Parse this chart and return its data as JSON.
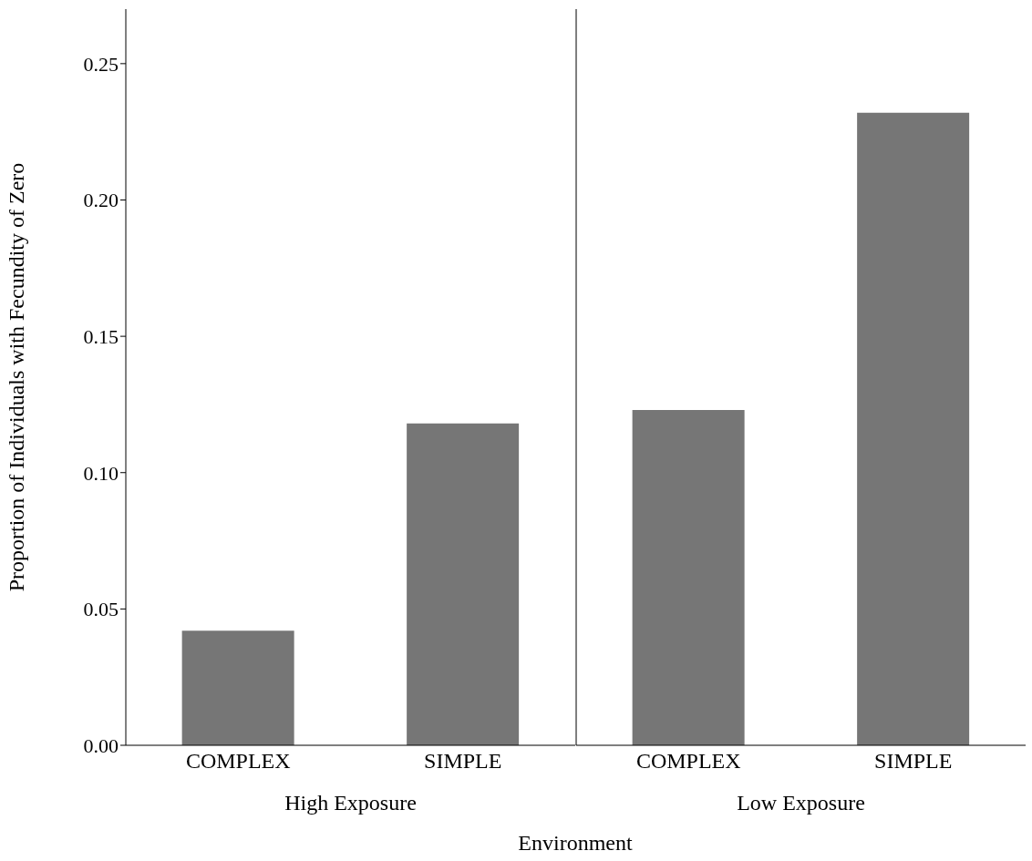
{
  "chart_data": [
    {
      "type": "bar",
      "categories": [
        "COMPLEX",
        "SIMPLE"
      ],
      "values": [
        0.042,
        0.118
      ],
      "color": "#767676",
      "xlabel": "High Exposure",
      "ylabel": "Proportion of  Individuals with Fecundity of Zero",
      "annotations": [
        "Environment"
      ],
      "ylim": [
        0,
        0.27
      ],
      "yticks": [
        {
          "value": 0,
          "label": "0.00"
        },
        {
          "value": 0.05,
          "label": "0.05"
        },
        {
          "value": 0.1,
          "label": "0.10"
        },
        {
          "value": 0.15,
          "label": "0.15"
        },
        {
          "value": 0.2,
          "label": "0.20"
        },
        {
          "value": 0.25,
          "label": "0.25"
        }
      ],
      "grid": false
    },
    {
      "type": "bar",
      "categories": [
        "COMPLEX",
        "SIMPLE"
      ],
      "values": [
        0.123,
        0.232
      ],
      "color": "#767676",
      "xlabel": "Low Exposure",
      "ylim": [
        0,
        0.27
      ],
      "tick_labels": "x",
      "grid": false
    }
  ]
}
